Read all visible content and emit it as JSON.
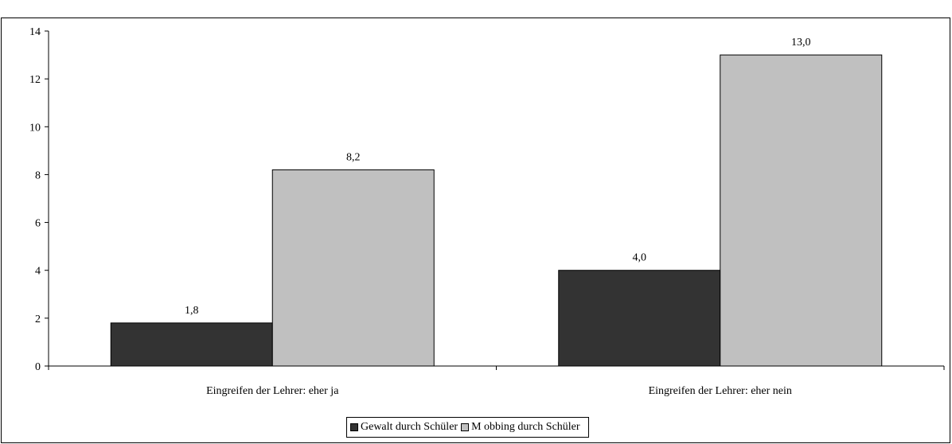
{
  "page": {
    "top_caption": ""
  },
  "chart_data": {
    "type": "bar",
    "title": "",
    "xlabel": "",
    "ylabel": "",
    "ylim": [
      0,
      14
    ],
    "yticks": [
      0,
      2,
      4,
      6,
      8,
      10,
      12,
      14
    ],
    "grid": false,
    "legend_position": "bottom-center",
    "categories": [
      "Eingreifen der Lehrer: eher ja",
      "Eingreifen der Lehrer: eher nein"
    ],
    "series": [
      {
        "name": "Gewalt durch Schüler",
        "color": "#333333",
        "values": [
          1.8,
          4.0
        ],
        "labels": [
          "1,8",
          "4,0"
        ]
      },
      {
        "name": "Mobbing durch Schüler",
        "color": "#c0c0c0",
        "values": [
          8.2,
          13.0
        ],
        "labels": [
          "8,2",
          "13,0"
        ]
      }
    ]
  },
  "legend": {
    "items": [
      {
        "label": "Gewalt durch Schüler",
        "color": "#333333"
      },
      {
        "label": "M obbing durch Schüler",
        "color": "#c0c0c0"
      }
    ]
  }
}
